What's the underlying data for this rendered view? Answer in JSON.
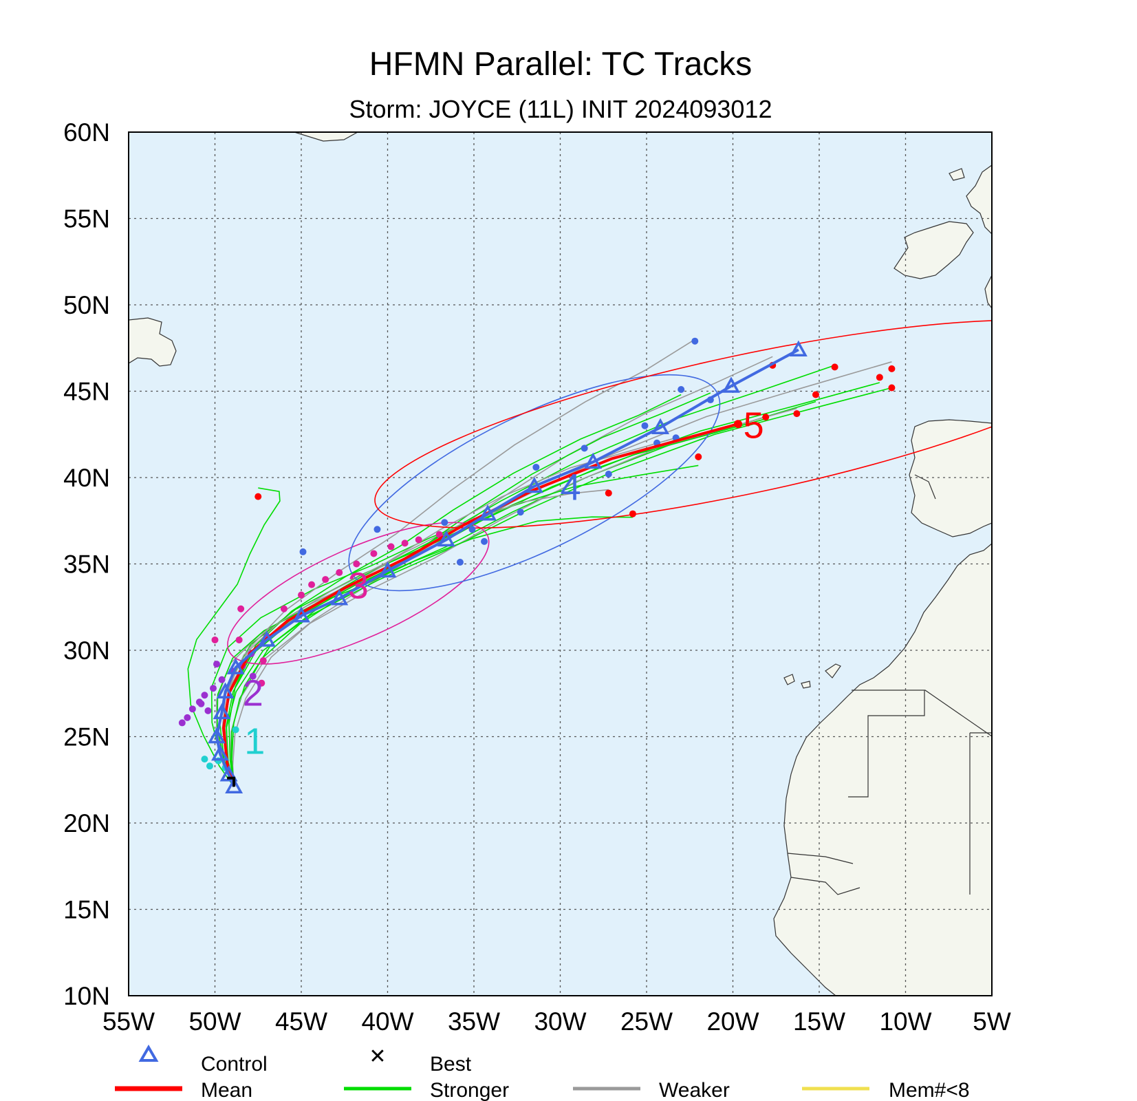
{
  "title": "HFMN Parallel: TC Tracks",
  "subtitle": "Storm: JOYCE (11L) INIT 2024093012",
  "legend": {
    "control": "Control",
    "best": "Best",
    "mean": "Mean",
    "stronger": "Stronger",
    "weaker": "Weaker",
    "mem": "Mem#<8"
  },
  "colors": {
    "ocean": "#e1f1fb",
    "land": "#f4f6ee",
    "control": "#4169e1",
    "mean": "#ff0000",
    "stronger": "#00dd00",
    "weaker": "#9a9a9a",
    "mem": "#f0e050",
    "day1": "#20d0d0",
    "day2": "#9b30d0",
    "day3": "#e0209a",
    "day4": "#4169e1",
    "day5": "#ff0000"
  },
  "chart_data": {
    "type": "scatter",
    "title": "HFMN Parallel: TC Tracks",
    "subtitle": "Storm: JOYCE (11L) INIT 2024093012",
    "xlim": [
      -55,
      -5
    ],
    "ylim": [
      10,
      60
    ],
    "x_ticks": [
      "55W",
      "50W",
      "45W",
      "40W",
      "35W",
      "30W",
      "25W",
      "20W",
      "15W",
      "10W",
      "5W"
    ],
    "y_ticks": [
      "60N",
      "55N",
      "50N",
      "45N",
      "40N",
      "35N",
      "30N",
      "25N",
      "20N",
      "15N",
      "10N"
    ],
    "grid": true,
    "control_track": {
      "name": "Control",
      "points": [
        [
          -48.9,
          22.1
        ],
        [
          -49.2,
          22.8
        ],
        [
          -49.7,
          24.0
        ],
        [
          -49.9,
          25.0
        ],
        [
          -49.6,
          26.4
        ],
        [
          -49.4,
          27.6
        ],
        [
          -48.8,
          29.0
        ],
        [
          -47.0,
          30.6
        ],
        [
          -45.0,
          32.0
        ],
        [
          -42.8,
          33.0
        ],
        [
          -40.0,
          34.6
        ],
        [
          -36.6,
          36.4
        ],
        [
          -34.2,
          37.9
        ],
        [
          -31.5,
          39.5
        ],
        [
          -28.1,
          40.9
        ],
        [
          -24.2,
          42.9
        ],
        [
          -20.1,
          45.3
        ],
        [
          -16.2,
          47.4
        ]
      ]
    },
    "mean_track": {
      "name": "Mean",
      "points": [
        [
          -48.9,
          22.1
        ],
        [
          -49.3,
          23.5
        ],
        [
          -49.5,
          25.5
        ],
        [
          -49.2,
          27.5
        ],
        [
          -48.0,
          29.8
        ],
        [
          -45.8,
          31.7
        ],
        [
          -42.5,
          33.6
        ],
        [
          -39.0,
          35.3
        ],
        [
          -35.5,
          37.3
        ],
        [
          -31.5,
          39.3
        ],
        [
          -27.0,
          41.1
        ],
        [
          -23.0,
          42.2
        ],
        [
          -19.7,
          43.1
        ]
      ]
    },
    "best_track": {
      "name": "Best",
      "points": [
        [
          -48.9,
          22.1
        ],
        [
          -48.9,
          22.6
        ],
        [
          -49.3,
          22.6
        ]
      ]
    },
    "forecast_day_labels": [
      {
        "label": "1",
        "x": -47.7,
        "y": 24.0,
        "color": "#20d0d0"
      },
      {
        "label": "2",
        "x": -47.8,
        "y": 26.8,
        "color": "#9b30d0"
      },
      {
        "label": "3",
        "x": -41.7,
        "y": 33.0,
        "color": "#e0209a"
      },
      {
        "label": "4",
        "x": -29.4,
        "y": 38.7,
        "color": "#4169e1"
      },
      {
        "label": "5",
        "x": -18.8,
        "y": 42.3,
        "color": "#ff0000"
      }
    ],
    "uncertainty_ellipses": [
      {
        "day": 3,
        "center": [
          -41.7,
          33.3
        ],
        "rx_deg": 8.2,
        "ry_deg": 2.6,
        "angle_deg": -24,
        "color": "#e0209a"
      },
      {
        "day": 4,
        "center": [
          -31.5,
          39.7
        ],
        "rx_deg": 11.8,
        "ry_deg": 3.9,
        "angle_deg": -26,
        "color": "#4169e1"
      },
      {
        "day": 5,
        "center": [
          -19.2,
          43.1
        ],
        "rx_deg": 22.0,
        "ry_deg": 4.0,
        "angle_deg": -12,
        "color": "#ff0000"
      }
    ],
    "member_endpoints_day5": [
      [
        -17.7,
        46.5
      ],
      [
        -14.1,
        46.4
      ],
      [
        -11.5,
        45.8
      ],
      [
        -10.8,
        46.3
      ],
      [
        -10.8,
        45.2
      ],
      [
        -15.2,
        44.8
      ],
      [
        -16.3,
        43.7
      ],
      [
        -18.1,
        43.5
      ],
      [
        -22.0,
        41.2
      ],
      [
        -27.2,
        39.1
      ],
      [
        -25.8,
        37.9
      ],
      [
        -47.5,
        38.9
      ]
    ],
    "member_points_day4": [
      [
        -22.2,
        47.9
      ],
      [
        -23.0,
        45.1
      ],
      [
        -21.3,
        44.5
      ],
      [
        -23.3,
        42.3
      ],
      [
        -24.4,
        42.0
      ],
      [
        -25.1,
        43.0
      ],
      [
        -28.6,
        41.7
      ],
      [
        -27.2,
        40.2
      ],
      [
        -31.4,
        40.6
      ],
      [
        -32.3,
        38.0
      ],
      [
        -34.4,
        36.3
      ],
      [
        -35.1,
        37.0
      ],
      [
        -35.8,
        35.1
      ],
      [
        -36.7,
        37.4
      ],
      [
        -40.6,
        37.0
      ],
      [
        -44.9,
        35.7
      ]
    ],
    "member_points_day3": [
      [
        -37.0,
        36.7
      ],
      [
        -38.2,
        36.4
      ],
      [
        -39.0,
        36.2
      ],
      [
        -39.8,
        36.0
      ],
      [
        -40.8,
        35.6
      ],
      [
        -41.8,
        35.0
      ],
      [
        -42.8,
        34.5
      ],
      [
        -43.6,
        34.1
      ],
      [
        -44.4,
        33.8
      ],
      [
        -45.0,
        33.2
      ],
      [
        -46.0,
        32.4
      ],
      [
        -47.0,
        30.8
      ],
      [
        -48.5,
        32.4
      ],
      [
        -48.6,
        30.6
      ],
      [
        -50.0,
        30.6
      ],
      [
        -47.2,
        29.4
      ],
      [
        -47.3,
        28.1
      ]
    ],
    "member_points_day2": [
      [
        -51.9,
        25.8
      ],
      [
        -51.6,
        26.1
      ],
      [
        -51.3,
        26.6
      ],
      [
        -50.9,
        27.0
      ],
      [
        -50.6,
        27.4
      ],
      [
        -50.1,
        27.8
      ],
      [
        -49.6,
        28.3
      ],
      [
        -49.0,
        28.8
      ],
      [
        -48.4,
        29.1
      ],
      [
        -47.9,
        29.8
      ],
      [
        -47.8,
        28.5
      ],
      [
        -50.4,
        26.5
      ],
      [
        -50.8,
        26.9
      ],
      [
        -49.9,
        29.2
      ]
    ],
    "member_points_day1": [
      [
        -50.6,
        23.7
      ],
      [
        -50.3,
        23.3
      ],
      [
        -49.8,
        23.6
      ],
      [
        -48.8,
        25.4
      ],
      [
        -49.4,
        23.2
      ]
    ]
  }
}
